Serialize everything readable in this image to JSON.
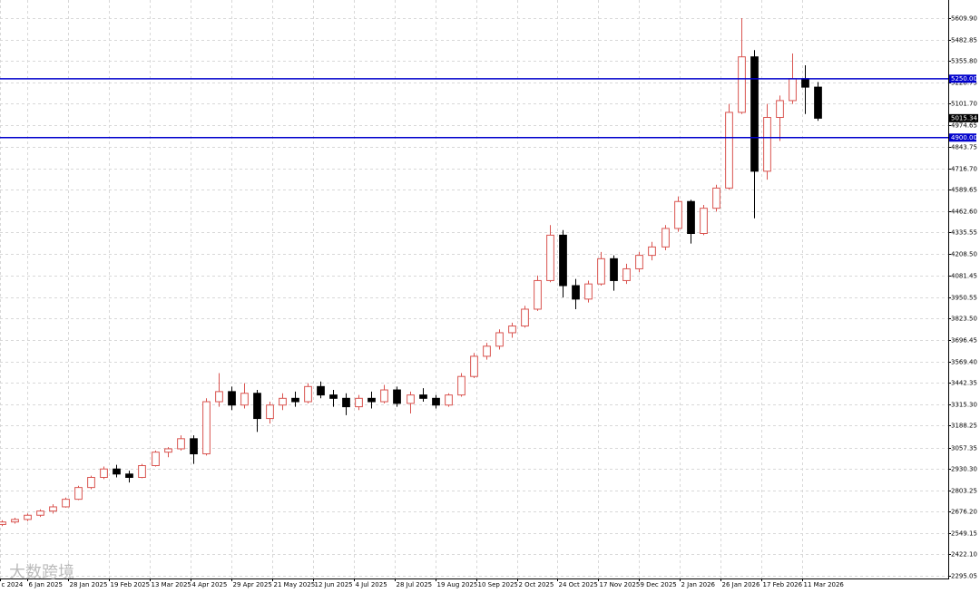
{
  "chart_data": {
    "type": "candlestick",
    "open": [
      2600,
      2615,
      2630,
      2655,
      2680,
      2705,
      2750,
      2820,
      2880,
      2930,
      2900,
      2880,
      2950,
      3030,
      3050,
      3110,
      3020,
      3330,
      3390,
      3310,
      3380,
      3230,
      3310,
      3350,
      3330,
      3420,
      3370,
      3350,
      3300,
      3350,
      3330,
      3400,
      3320,
      3370,
      3350,
      3310,
      3370,
      3480,
      3600,
      3660,
      3740,
      3780,
      3880,
      4050,
      4320,
      4020,
      3940,
      4030,
      4180,
      4050,
      4120,
      4200,
      4250,
      4360,
      4520,
      4330,
      4480,
      4600,
      5050,
      5380,
      4700,
      5020,
      5120,
      5250,
      5200
    ],
    "high": [
      2625,
      2640,
      2665,
      2690,
      2720,
      2760,
      2830,
      2890,
      2945,
      2955,
      2920,
      2960,
      3040,
      3060,
      3130,
      3130,
      3350,
      3500,
      3420,
      3440,
      3400,
      3330,
      3380,
      3390,
      3440,
      3450,
      3400,
      3380,
      3370,
      3390,
      3430,
      3420,
      3390,
      3410,
      3370,
      3380,
      3500,
      3620,
      3680,
      3760,
      3800,
      3900,
      4080,
      4380,
      4350,
      4060,
      4050,
      4220,
      4200,
      4150,
      4220,
      4280,
      4380,
      4550,
      4530,
      4500,
      4620,
      5100,
      5610,
      5420,
      5100,
      5150,
      5400,
      5330,
      5230
    ],
    "low": [
      2590,
      2605,
      2620,
      2645,
      2665,
      2700,
      2745,
      2810,
      2870,
      2880,
      2850,
      2875,
      2945,
      3000,
      3040,
      2960,
      3010,
      3300,
      3280,
      3290,
      3150,
      3200,
      3280,
      3300,
      3320,
      3350,
      3300,
      3250,
      3280,
      3290,
      3320,
      3300,
      3260,
      3330,
      3290,
      3300,
      3360,
      3470,
      3580,
      3640,
      3710,
      3770,
      3870,
      4040,
      3950,
      3880,
      3920,
      4020,
      3990,
      4030,
      4100,
      4170,
      4230,
      4340,
      4270,
      4320,
      4460,
      4590,
      5040,
      4420,
      4650,
      4880,
      5100,
      5040,
      5000
    ],
    "close": [
      2615,
      2630,
      2655,
      2680,
      2705,
      2750,
      2820,
      2880,
      2930,
      2900,
      2880,
      2950,
      3030,
      3050,
      3110,
      3020,
      3330,
      3390,
      3310,
      3380,
      3230,
      3310,
      3350,
      3330,
      3420,
      3370,
      3350,
      3300,
      3350,
      3330,
      3400,
      3320,
      3370,
      3350,
      3310,
      3370,
      3480,
      3600,
      3660,
      3740,
      3780,
      3880,
      4050,
      4320,
      4020,
      3940,
      4030,
      4180,
      4050,
      4120,
      4200,
      4250,
      4360,
      4520,
      4330,
      4480,
      4600,
      5050,
      5380,
      4700,
      5020,
      5120,
      5250,
      5200,
      5015.34
    ],
    "up_color": "#d9534f",
    "down_color": "#000000",
    "xlim": [
      -0.135,
      74.24
    ],
    "xticks": [
      {
        "value": -0.1,
        "label": "c 2024"
      },
      {
        "value": 2,
        "label": "6 Jan 2025"
      },
      {
        "value": 5.2,
        "label": "28 Jan 2025"
      },
      {
        "value": 8.4,
        "label": "19 Feb 2025"
      },
      {
        "value": 11.6,
        "label": "13 Mar 2025"
      },
      {
        "value": 14.8,
        "label": "4 Apr 2025"
      },
      {
        "value": 18,
        "label": "29 Apr 2025"
      },
      {
        "value": 21.2,
        "label": "21 May 2025"
      },
      {
        "value": 24.4,
        "label": "12 Jun 2025"
      },
      {
        "value": 27.6,
        "label": "4 Jul 2025"
      },
      {
        "value": 30.8,
        "label": "28 Jul 2025"
      },
      {
        "value": 34,
        "label": "19 Aug 2025"
      },
      {
        "value": 37.2,
        "label": "10 Sep 2025"
      },
      {
        "value": 40.4,
        "label": "2 Oct 2025"
      },
      {
        "value": 43.6,
        "label": "24 Oct 2025"
      },
      {
        "value": 46.8,
        "label": "17 Nov 2025"
      },
      {
        "value": 50,
        "label": "9 Dec 2025"
      },
      {
        "value": 53.2,
        "label": "2 Jan 2026"
      },
      {
        "value": 56.4,
        "label": "26 Jan 2026"
      },
      {
        "value": 59.6,
        "label": "17 Feb 2026"
      },
      {
        "value": 62.8,
        "label": "11 Mar 2026"
      }
    ],
    "ylim": [
      2279,
      5718
    ],
    "yticks": [
      {
        "value": 5609.9,
        "label": "5609.90"
      },
      {
        "value": 5482.85,
        "label": "5482.85"
      },
      {
        "value": 5355.8,
        "label": "5355.80"
      },
      {
        "value": 5228.75,
        "label": "5228.75"
      },
      {
        "value": 5101.7,
        "label": "5101.70"
      },
      {
        "value": 4974.65,
        "label": "4974.65"
      },
      {
        "value": 4843.75,
        "label": "4843.75"
      },
      {
        "value": 4716.7,
        "label": "4716.70"
      },
      {
        "value": 4589.65,
        "label": "4589.65"
      },
      {
        "value": 4462.6,
        "label": "4462.60"
      },
      {
        "value": 4335.55,
        "label": "4335.55"
      },
      {
        "value": 4208.5,
        "label": "4208.50"
      },
      {
        "value": 4081.45,
        "label": "4081.45"
      },
      {
        "value": 3950.55,
        "label": "3950.55"
      },
      {
        "value": 3823.5,
        "label": "3823.50"
      },
      {
        "value": 3696.45,
        "label": "3696.45"
      },
      {
        "value": 3569.4,
        "label": "3569.40"
      },
      {
        "value": 3442.35,
        "label": "3442.35"
      },
      {
        "value": 3315.3,
        "label": "3315.30"
      },
      {
        "value": 3188.25,
        "label": "3188.25"
      },
      {
        "value": 3057.35,
        "label": "3057.35"
      },
      {
        "value": 2930.3,
        "label": "2930.30"
      },
      {
        "value": 2803.25,
        "label": "2803.25"
      },
      {
        "value": 2676.2,
        "label": "2676.20"
      },
      {
        "value": 2549.15,
        "label": "2549.15"
      },
      {
        "value": 2422.1,
        "label": "2422.10"
      },
      {
        "value": 2295.05,
        "label": "2295.05"
      }
    ],
    "hlines": [
      {
        "value": 5250,
        "label": "5250.00",
        "color": "#0000cc"
      },
      {
        "value": 4900,
        "label": "4900.00",
        "color": "#0000cc"
      }
    ],
    "grid": true,
    "watermark": "大数跨境"
  }
}
